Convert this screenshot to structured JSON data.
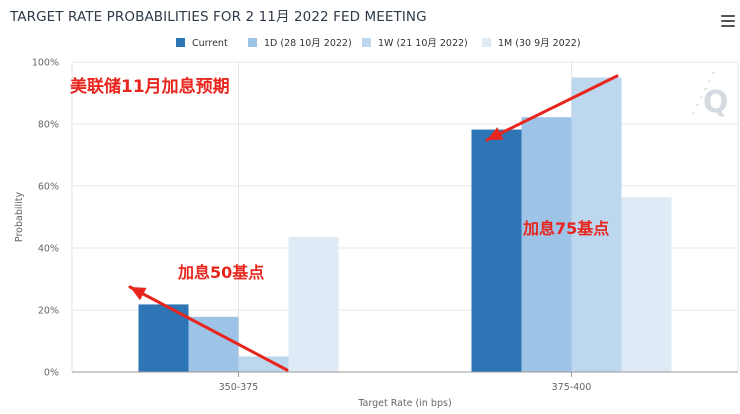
{
  "title": "TARGET RATE PROBABILITIES FOR 2 11月 2022 FED MEETING",
  "menu_icon": "hamburger-menu-icon",
  "watermark_icon": "q-logo-icon",
  "colors": {
    "current": "#2e75b6",
    "d1": "#9dc3e6",
    "w1": "#bdd7ee",
    "m1": "#deebf7",
    "annotation": "#e8261e",
    "axis_text": "#666666",
    "grid": "#e6e6e6"
  },
  "annotations": {
    "top": "美联储11月加息预期",
    "hike50": "加息50基点",
    "hike75": "加息75基点"
  },
  "chart_data": {
    "type": "bar",
    "title": "TARGET RATE PROBABILITIES FOR 2 11月 2022 FED MEETING",
    "xlabel": "Target Rate (in bps)",
    "ylabel": "Probability",
    "ylim": [
      0,
      100
    ],
    "yticks": [
      "0%",
      "20%",
      "40%",
      "60%",
      "80%",
      "100%"
    ],
    "categories": [
      "350-375",
      "375-400"
    ],
    "legend_position": "top",
    "series": [
      {
        "name": "Current",
        "values": [
          21.8,
          78.2
        ]
      },
      {
        "name": "1D (28 10月 2022)",
        "values": [
          17.8,
          82.2
        ]
      },
      {
        "name": "1W (21 10月 2022)",
        "values": [
          5.0,
          95.0
        ]
      },
      {
        "name": "1M (30 9月 2022)",
        "values": [
          43.6,
          56.4
        ]
      }
    ]
  }
}
